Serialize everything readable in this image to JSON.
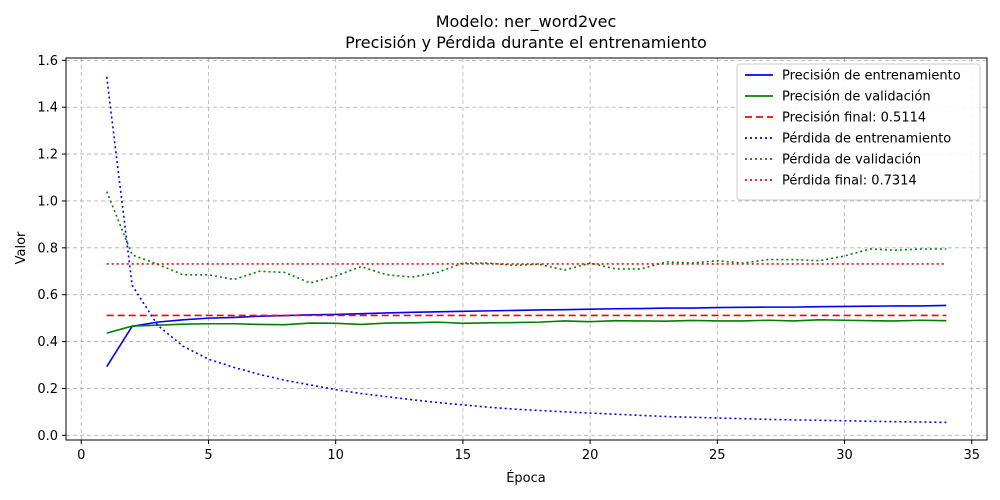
{
  "chart_data": {
    "type": "line",
    "title": "Modelo: ner_word2vec",
    "subtitle": "Precisión y Pérdida durante el entrenamiento",
    "xlabel": "Época",
    "ylabel": "Valor",
    "xlim": [
      -0.6,
      35.6
    ],
    "ylim": [
      -0.02,
      1.61
    ],
    "xticks": [
      0,
      5,
      10,
      15,
      20,
      25,
      30,
      35
    ],
    "yticks": [
      0.0,
      0.2,
      0.4,
      0.6,
      0.8,
      1.0,
      1.2,
      1.4,
      1.6
    ],
    "ytick_labels": [
      "0.0",
      "0.2",
      "0.4",
      "0.6",
      "0.8",
      "1.0",
      "1.2",
      "1.4",
      "1.6"
    ],
    "grid": true,
    "legend_position": "top-right",
    "x": [
      1,
      2,
      3,
      4,
      5,
      6,
      7,
      8,
      9,
      10,
      11,
      12,
      13,
      14,
      15,
      16,
      17,
      18,
      19,
      20,
      21,
      22,
      23,
      24,
      25,
      26,
      27,
      28,
      29,
      30,
      31,
      32,
      33,
      34
    ],
    "series": [
      {
        "name": "Precisión de entrenamiento",
        "color": "#0000ff",
        "style": "solid",
        "values": [
          0.293,
          0.465,
          0.483,
          0.493,
          0.5,
          0.503,
          0.508,
          0.511,
          0.514,
          0.516,
          0.519,
          0.522,
          0.525,
          0.527,
          0.529,
          0.531,
          0.533,
          0.535,
          0.536,
          0.538,
          0.54,
          0.541,
          0.543,
          0.543,
          0.545,
          0.546,
          0.547,
          0.547,
          0.549,
          0.55,
          0.551,
          0.552,
          0.552,
          0.554
        ]
      },
      {
        "name": "Precisión de validación",
        "color": "#008000",
        "style": "solid",
        "values": [
          0.436,
          0.466,
          0.47,
          0.474,
          0.476,
          0.476,
          0.473,
          0.472,
          0.479,
          0.478,
          0.473,
          0.479,
          0.48,
          0.483,
          0.478,
          0.48,
          0.481,
          0.483,
          0.488,
          0.485,
          0.489,
          0.488,
          0.487,
          0.49,
          0.488,
          0.488,
          0.491,
          0.488,
          0.493,
          0.491,
          0.489,
          0.488,
          0.491,
          0.489
        ]
      },
      {
        "name": "Precisión final: 0.5114",
        "color": "#ff0000",
        "style": "dashed",
        "values": [
          0.5114,
          0.5114,
          0.5114,
          0.5114,
          0.5114,
          0.5114,
          0.5114,
          0.5114,
          0.5114,
          0.5114,
          0.5114,
          0.5114,
          0.5114,
          0.5114,
          0.5114,
          0.5114,
          0.5114,
          0.5114,
          0.5114,
          0.5114,
          0.5114,
          0.5114,
          0.5114,
          0.5114,
          0.5114,
          0.5114,
          0.5114,
          0.5114,
          0.5114,
          0.5114,
          0.5114,
          0.5114,
          0.5114,
          0.5114
        ]
      },
      {
        "name": "Pérdida de entrenamiento",
        "color": "#0000ff",
        "style": "dotted",
        "values": [
          1.53,
          0.64,
          0.47,
          0.38,
          0.325,
          0.29,
          0.26,
          0.235,
          0.215,
          0.195,
          0.178,
          0.165,
          0.152,
          0.14,
          0.13,
          0.12,
          0.112,
          0.106,
          0.1,
          0.095,
          0.09,
          0.085,
          0.08,
          0.077,
          0.074,
          0.071,
          0.068,
          0.066,
          0.064,
          0.062,
          0.06,
          0.058,
          0.057,
          0.055
        ]
      },
      {
        "name": "Pérdida de validación",
        "color": "#008000",
        "style": "dotted",
        "values": [
          1.04,
          0.77,
          0.73,
          0.685,
          0.685,
          0.665,
          0.7,
          0.695,
          0.65,
          0.68,
          0.72,
          0.685,
          0.675,
          0.695,
          0.735,
          0.735,
          0.725,
          0.73,
          0.705,
          0.735,
          0.71,
          0.71,
          0.74,
          0.735,
          0.745,
          0.735,
          0.75,
          0.75,
          0.745,
          0.765,
          0.795,
          0.79,
          0.795,
          0.795
        ]
      },
      {
        "name": "Pérdida final: 0.7314",
        "color": "#ff0000",
        "style": "dotted",
        "values": [
          0.7314,
          0.7314,
          0.7314,
          0.7314,
          0.7314,
          0.7314,
          0.7314,
          0.7314,
          0.7314,
          0.7314,
          0.7314,
          0.7314,
          0.7314,
          0.7314,
          0.7314,
          0.7314,
          0.7314,
          0.7314,
          0.7314,
          0.7314,
          0.7314,
          0.7314,
          0.7314,
          0.7314,
          0.7314,
          0.7314,
          0.7314,
          0.7314,
          0.7314,
          0.7314,
          0.7314,
          0.7314,
          0.7314,
          0.7314
        ]
      }
    ]
  }
}
